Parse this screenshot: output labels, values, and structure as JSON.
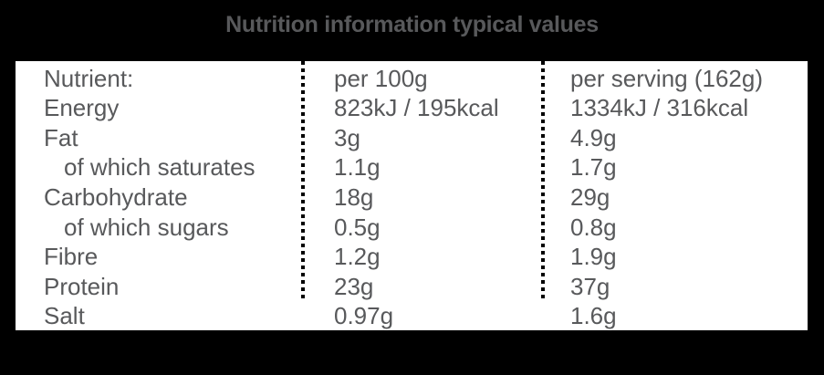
{
  "title": "Nutrition information typical values",
  "colors": {
    "background": "#000000",
    "panel": "#ffffff",
    "text": "#58595b",
    "title": "#58595b",
    "divider": "#000000"
  },
  "table": {
    "columns": {
      "nutrient": "Nutrient:",
      "per100g": "per 100g",
      "perServing": "per serving (162g)"
    },
    "rows": [
      {
        "nutrient": "Energy",
        "per100g": "823kJ / 195kcal",
        "perServing": "1334kJ / 316kcal",
        "indent": false
      },
      {
        "nutrient": "Fat",
        "per100g": "3g",
        "perServing": "4.9g",
        "indent": false
      },
      {
        "nutrient": "of which saturates",
        "per100g": "1.1g",
        "perServing": "1.7g",
        "indent": true
      },
      {
        "nutrient": "Carbohydrate",
        "per100g": "18g",
        "perServing": "29g",
        "indent": false
      },
      {
        "nutrient": "of which sugars",
        "per100g": "0.5g",
        "perServing": "0.8g",
        "indent": true
      },
      {
        "nutrient": "Fibre",
        "per100g": "1.2g",
        "perServing": "1.9g",
        "indent": false
      },
      {
        "nutrient": "Protein",
        "per100g": "23g",
        "perServing": "37g",
        "indent": false
      },
      {
        "nutrient": "Salt",
        "per100g": "0.97g",
        "perServing": "1.6g",
        "indent": false
      }
    ]
  }
}
